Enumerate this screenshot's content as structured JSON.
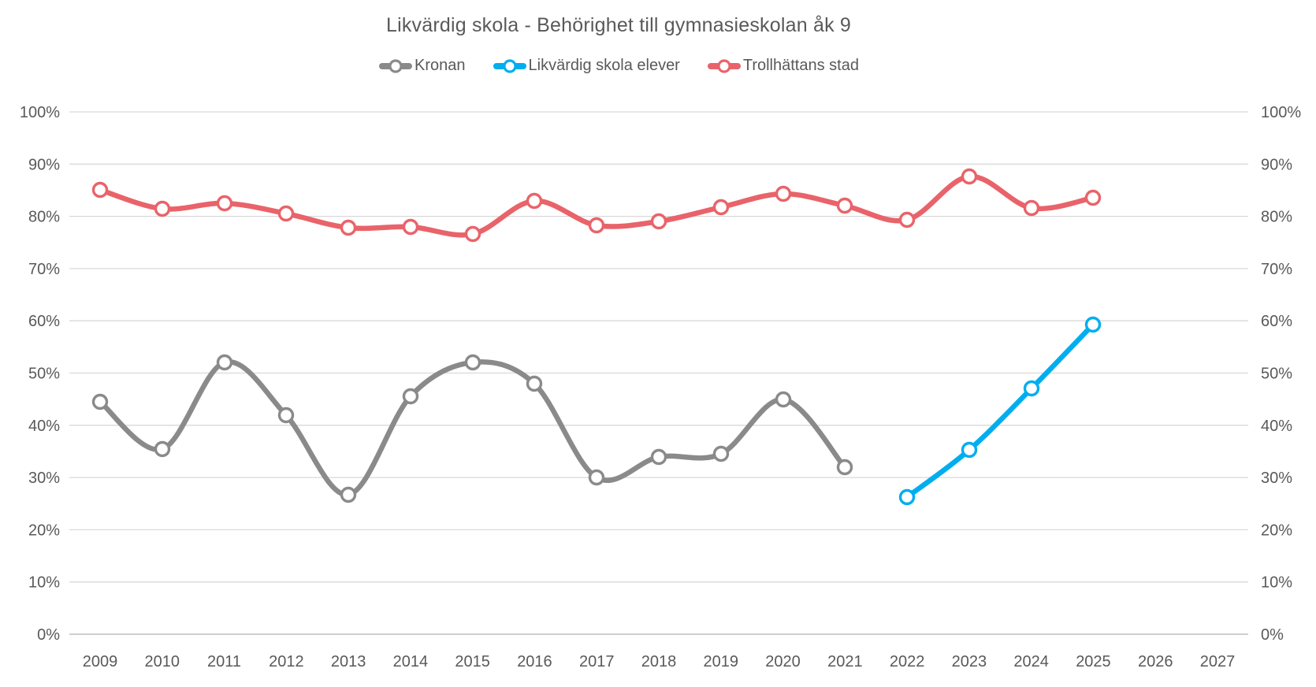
{
  "title": "Likvärdig skola - Behörighet till gymnasieskolan åk 9",
  "colors": {
    "text": "#595959",
    "gridline": "#d9d9d9",
    "axis_line": "#cfcfcf",
    "series_gray": "#8a8a8a",
    "series_blue": "#00aeef",
    "series_red": "#e9636a"
  },
  "chart_data": {
    "type": "line",
    "title": "Likvärdig skola - Behörighet till gymnasieskolan åk 9",
    "categories": [
      "2009",
      "2010",
      "2011",
      "2012",
      "2013",
      "2014",
      "2015",
      "2016",
      "2017",
      "2018",
      "2019",
      "2020",
      "2021",
      "2022",
      "2023",
      "2024",
      "2025",
      "2026",
      "2027"
    ],
    "y_ticks": [
      "0%",
      "10%",
      "20%",
      "30%",
      "40%",
      "50%",
      "60%",
      "70%",
      "80%",
      "90%",
      "100%"
    ],
    "ylim": [
      0,
      100
    ],
    "grid": "horizontal",
    "legend_position": "top",
    "smooth_lines": true,
    "dual_y_axis": true,
    "series": [
      {
        "name": "Kronan",
        "color": "#8a8a8a",
        "values": [
          44.5,
          35.5,
          52,
          42,
          26.7,
          45.5,
          52,
          48,
          30,
          34,
          34.5,
          45,
          32,
          null,
          null,
          null,
          null,
          null,
          null
        ]
      },
      {
        "name": "Likvärdig skola elever",
        "color": "#00aeef",
        "values": [
          null,
          null,
          null,
          null,
          null,
          null,
          null,
          null,
          null,
          null,
          null,
          null,
          null,
          26.3,
          35.3,
          47,
          59.3,
          null,
          null
        ]
      },
      {
        "name": "Trollhättans stad",
        "color": "#e9636a",
        "values": [
          85,
          81.5,
          82.5,
          80.5,
          77.8,
          78,
          76.6,
          83,
          78.3,
          79.1,
          81.7,
          84.3,
          82,
          79.4,
          87.7,
          81.6,
          83.5,
          null,
          null
        ]
      }
    ]
  }
}
